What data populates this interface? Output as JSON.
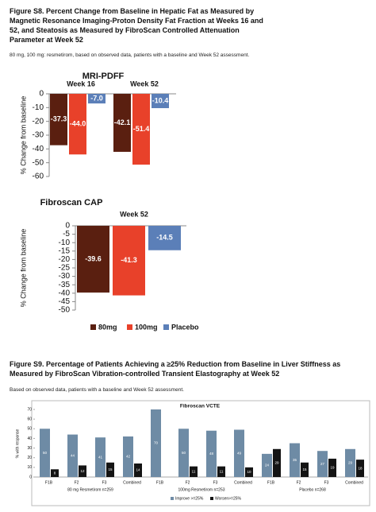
{
  "figure_s8": {
    "title": "Figure S8. Percent Change from Baseline in Hepatic Fat as Measured by Magnetic Resonance Imaging-Proton Density Fat Fraction at Weeks 16 and 52, and Steatosis as Measured by FibroScan Controlled Attenuation Parameter at Week 52",
    "subtitle": "80 mg, 100 mg: resmetirom, based on observed data, patients with a baseline and Week 52 assessment."
  },
  "figure_s9": {
    "title": "Figure S9. Percentage of Patients Achieving a ≥25% Reduction from Baseline in Liver Stiffness as Measured by FibroScan Vibration-controlled Transient Elastography at Week 52",
    "subtitle": "Based on observed data, patients with a baseline and Week 52 assessment."
  },
  "chart_data": [
    {
      "type": "bar",
      "title": "MRI-PDFF",
      "y_label": "% Change from baseline",
      "categories": [
        "Week 16",
        "Week 52"
      ],
      "series": [
        {
          "color": "#5a1f10",
          "values": [
            -37.3,
            -42.1
          ],
          "value_labels": [
            "-37.3",
            "-42.1"
          ]
        },
        {
          "color": "#e8412a",
          "values": [
            -44.0,
            -51.4
          ],
          "value_labels": [
            "-44.0",
            "-51.4"
          ]
        },
        {
          "color": "#5b7fb8",
          "values": [
            -7.0,
            -10.4
          ],
          "value_labels": [
            "-7.0",
            "-10.4"
          ]
        }
      ],
      "ylim": [
        -60,
        0
      ],
      "yticks": [
        0,
        -10,
        -20,
        -30,
        -40,
        -50,
        -60
      ]
    },
    {
      "type": "bar",
      "title": "Fibroscan CAP",
      "y_label": "% Change from baseline",
      "categories": [
        "Week 52"
      ],
      "series": [
        {
          "name": "80mg",
          "color": "#5a1f10",
          "values": [
            -39.6
          ],
          "value_labels": [
            "-39.6"
          ]
        },
        {
          "name": "100mg",
          "color": "#e8412a",
          "values": [
            -41.3
          ],
          "value_labels": [
            "-41.3"
          ]
        },
        {
          "name": "Placebo",
          "color": "#5b7fb8",
          "values": [
            -14.5
          ],
          "value_labels": [
            "-14.5"
          ]
        }
      ],
      "ylim": [
        -50,
        0
      ],
      "yticks": [
        0,
        -5,
        -10,
        -15,
        -20,
        -25,
        -30,
        -35,
        -40,
        -45,
        -50
      ]
    },
    {
      "type": "bar",
      "title": "Fibroscan VCTE",
      "y_label": "% with response",
      "categories": [
        "F1B",
        "F2",
        "F3",
        "Combined",
        "F1B",
        "F2",
        "F3",
        "Combined",
        "F1B",
        "F2",
        "F3",
        "Combined"
      ],
      "group_labels": [
        "80 mg Resmetirom n=259",
        "100mg Resmetirom n=253",
        "Placebo n=268"
      ],
      "series": [
        {
          "name": "Improve >=25%",
          "color": "#6e8ba5",
          "values": [
            50,
            44,
            41,
            42,
            70,
            50,
            48,
            49,
            24,
            35,
            27,
            29
          ]
        },
        {
          "name": "Worsen>=25%",
          "color": "#141414",
          "values": [
            8,
            12,
            15,
            14,
            null,
            11,
            11,
            10,
            29,
            15,
            19,
            18
          ]
        }
      ],
      "ylim": [
        0,
        70
      ],
      "yticks": [
        0,
        10,
        20,
        30,
        40,
        50,
        60,
        70
      ]
    }
  ]
}
